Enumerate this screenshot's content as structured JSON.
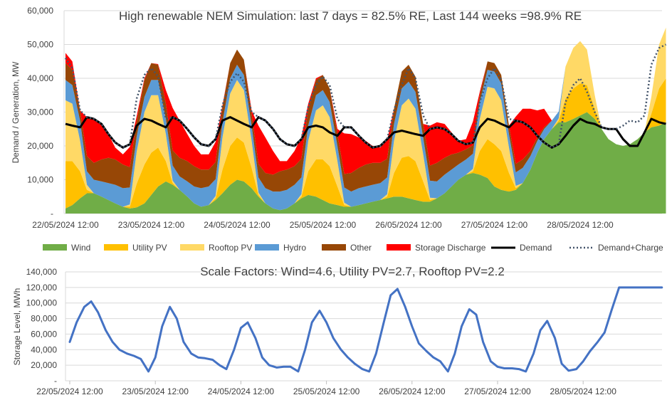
{
  "chart_data": [
    {
      "type": "area",
      "title": "High renewable NEM Simulation: last 7 days = 82.5% RE, Last 144 weeks =98.9% RE",
      "xlabel": "",
      "ylabel": "Demand / Generation, MW",
      "ylim": [
        0,
        60000
      ],
      "yticks": [
        "-",
        "10,000",
        "20,000",
        "30,000",
        "40,000",
        "50,000",
        "60,000"
      ],
      "xticks": [
        "22/05/2024 12:00",
        "23/05/2024 12:00",
        "24/05/2024 12:00",
        "25/05/2024 12:00",
        "26/05/2024 12:00",
        "27/05/2024 12:00",
        "28/05/2024 12:00"
      ],
      "grid": true,
      "legend_position": "bottom",
      "x_days": [
        0,
        0.08,
        0.17,
        0.25,
        0.33,
        0.42,
        0.5,
        0.58,
        0.67,
        0.75,
        0.83,
        0.92,
        1,
        1.08,
        1.17,
        1.25,
        1.33,
        1.42,
        1.5,
        1.58,
        1.67,
        1.75,
        1.83,
        1.92,
        2,
        2.08,
        2.17,
        2.25,
        2.33,
        2.42,
        2.5,
        2.58,
        2.67,
        2.75,
        2.83,
        2.92,
        3,
        3.08,
        3.17,
        3.25,
        3.33,
        3.42,
        3.5,
        3.58,
        3.67,
        3.75,
        3.83,
        3.92,
        4,
        4.08,
        4.17,
        4.25,
        4.33,
        4.42,
        4.5,
        4.58,
        4.67,
        4.75,
        4.83,
        4.92,
        5,
        5.08,
        5.17,
        5.25,
        5.33,
        5.42,
        5.5,
        5.58,
        5.67,
        5.75,
        5.83,
        5.92,
        6,
        6.08,
        6.17,
        6.25,
        6.33,
        6.42,
        6.5,
        6.58,
        6.67,
        6.75,
        6.83,
        6.92,
        7
      ],
      "series": [
        {
          "name": "Wind",
          "color": "#70AD47",
          "values": [
            1500,
            2500,
            4500,
            6000,
            6000,
            5000,
            4000,
            3000,
            2000,
            1500,
            1800,
            3000,
            5500,
            8000,
            9500,
            8500,
            7000,
            5000,
            3000,
            2000,
            2500,
            4000,
            6000,
            8500,
            10000,
            9500,
            7500,
            5000,
            3000,
            1500,
            1000,
            1500,
            3000,
            4500,
            5500,
            5000,
            4000,
            3000,
            2500,
            2000,
            2000,
            2500,
            3000,
            3500,
            4000,
            4500,
            5000,
            5000,
            4500,
            4000,
            3500,
            3500,
            4500,
            6000,
            8000,
            10000,
            11500,
            12000,
            11500,
            10500,
            8000,
            7000,
            6500,
            7000,
            9000,
            13000,
            18000,
            22000,
            25000,
            27000,
            27000,
            28000,
            29000,
            30000,
            28000,
            25000,
            22000,
            20500,
            20000,
            20500,
            22000,
            24000,
            25500,
            26000,
            27000
          ]
        },
        {
          "name": "Utility PV",
          "color": "#FFC000",
          "values": [
            14000,
            13000,
            8000,
            1000,
            0,
            0,
            0,
            0,
            0,
            500,
            7000,
            11500,
            12500,
            11500,
            6000,
            500,
            0,
            0,
            0,
            0,
            0,
            500,
            7000,
            11500,
            12500,
            11500,
            6000,
            500,
            0,
            0,
            0,
            0,
            0,
            500,
            7000,
            11000,
            12000,
            11000,
            5500,
            500,
            0,
            0,
            0,
            0,
            0,
            500,
            7000,
            11500,
            12500,
            11500,
            6000,
            500,
            0,
            0,
            0,
            0,
            0,
            500,
            7000,
            11500,
            12500,
            11500,
            5500,
            500,
            0,
            0,
            0,
            0,
            0,
            500,
            7000,
            9000,
            9500,
            8000,
            3000,
            0,
            0,
            0,
            0,
            0,
            0,
            0,
            4000,
            11000,
            13000
          ]
        },
        {
          "name": "Rooftop PV",
          "color": "#FFD966",
          "values": [
            18000,
            17000,
            9000,
            1500,
            0,
            0,
            0,
            0,
            0,
            700,
            9500,
            15500,
            17000,
            15500,
            8000,
            700,
            0,
            0,
            0,
            0,
            0,
            700,
            9500,
            15500,
            17000,
            15500,
            8000,
            700,
            0,
            0,
            0,
            0,
            0,
            700,
            9000,
            14500,
            16000,
            14500,
            7500,
            700,
            0,
            0,
            0,
            0,
            0,
            700,
            9500,
            15500,
            17000,
            15500,
            8000,
            700,
            0,
            0,
            0,
            0,
            0,
            700,
            9500,
            15500,
            16500,
            15000,
            7500,
            700,
            0,
            0,
            0,
            0,
            0,
            700,
            9500,
            12000,
            12500,
            10500,
            4000,
            0,
            0,
            0,
            0,
            0,
            0,
            0,
            5000,
            13000,
            15000
          ]
        },
        {
          "name": "Hydro",
          "color": "#5B9BD5",
          "values": [
            6000,
            5500,
            6000,
            4000,
            4000,
            4500,
            5000,
            5500,
            5500,
            5000,
            4500,
            4500,
            4500,
            4500,
            4500,
            4500,
            4000,
            4500,
            5000,
            5500,
            5500,
            5000,
            4500,
            4500,
            4500,
            4500,
            4500,
            4500,
            4500,
            5000,
            5500,
            5500,
            5500,
            5000,
            4500,
            4500,
            4500,
            4500,
            4500,
            4500,
            4500,
            5000,
            5000,
            5000,
            5000,
            5000,
            5000,
            5000,
            5000,
            5000,
            5000,
            5000,
            5000,
            5500,
            5000,
            4500,
            4500,
            4500,
            5000,
            5000,
            5000,
            5000,
            4000,
            4000,
            4500,
            4000,
            3500,
            3000,
            2500,
            2000,
            0,
            0,
            0,
            0,
            0,
            0,
            0,
            0,
            0,
            0,
            0,
            0,
            0,
            0,
            0
          ]
        },
        {
          "name": "Other",
          "color": "#974706",
          "values": [
            5000,
            4500,
            3000,
            4500,
            5000,
            6500,
            7500,
            7500,
            7000,
            6000,
            4500,
            5000,
            5000,
            4500,
            4500,
            4500,
            5500,
            6000,
            6000,
            5500,
            5000,
            5000,
            4500,
            4500,
            4500,
            4500,
            3500,
            4000,
            4500,
            5000,
            6000,
            6000,
            5500,
            5500,
            5000,
            4500,
            4500,
            4000,
            3500,
            4000,
            5500,
            6000,
            6500,
            6500,
            6000,
            5500,
            4500,
            5000,
            5000,
            4500,
            4000,
            4500,
            5500,
            5000,
            4500,
            3500,
            3000,
            2500,
            2000,
            2500,
            2500,
            2500,
            2500,
            2500,
            2500,
            1500,
            1000,
            500,
            0,
            0,
            0,
            0,
            0,
            0,
            0,
            0,
            0,
            0,
            0,
            0,
            0,
            0,
            0,
            0,
            0
          ]
        },
        {
          "name": "Storage Discharge",
          "color": "#FF0000",
          "values": [
            3000,
            2500,
            0,
            11500,
            13000,
            10500,
            7000,
            3500,
            3000,
            6000,
            1500,
            500,
            0,
            200,
            4000,
            12500,
            11000,
            8000,
            6000,
            4500,
            4500,
            6000,
            500,
            0,
            0,
            0,
            1000,
            11300,
            10500,
            7000,
            3000,
            2500,
            4500,
            6500,
            1500,
            500,
            0,
            0,
            1500,
            12000,
            11500,
            9000,
            7000,
            5000,
            4500,
            5500,
            0,
            0,
            0,
            0,
            0,
            11800,
            12000,
            10000,
            6500,
            3500,
            3000,
            7000,
            1000,
            0,
            0,
            0,
            0,
            14000,
            15000,
            12500,
            8000,
            5500,
            0,
            0,
            0,
            0,
            0,
            0,
            0,
            0,
            0,
            0,
            0,
            0,
            0,
            0,
            0,
            0,
            0
          ]
        },
        {
          "name": "Demand",
          "color": "#000000",
          "values": [
            26500,
            26000,
            25500,
            28500,
            28000,
            26500,
            23500,
            21000,
            19500,
            20500,
            26000,
            28000,
            27500,
            26500,
            25500,
            28500,
            27500,
            25000,
            22500,
            20500,
            20000,
            22000,
            27500,
            28500,
            27500,
            26500,
            25500,
            28500,
            27500,
            25000,
            22000,
            20500,
            20000,
            22000,
            25500,
            26000,
            25500,
            24000,
            23000,
            25500,
            25500,
            23000,
            21000,
            19500,
            20000,
            22000,
            24000,
            24500,
            24000,
            23500,
            23000,
            25000,
            25500,
            25000,
            23500,
            21500,
            20500,
            21000,
            25500,
            28000,
            27500,
            26500,
            25500,
            27500,
            27000,
            25500,
            23000,
            21000,
            19500,
            20500,
            23000,
            26000,
            28000,
            27000,
            26500,
            25500,
            25000,
            25000,
            22000,
            20000,
            20000,
            24000,
            28000,
            27000,
            26500
          ]
        },
        {
          "name": "Demand+Charge",
          "color": "#44546A",
          "values": [
            46000,
            43000,
            30500,
            28500,
            28000,
            26500,
            23500,
            21000,
            19500,
            20500,
            34000,
            41000,
            43000,
            40500,
            28000,
            28500,
            27500,
            25000,
            22500,
            20500,
            20000,
            22000,
            32000,
            39000,
            41500,
            39000,
            30000,
            28500,
            27500,
            25000,
            22000,
            20500,
            20000,
            22000,
            31500,
            38000,
            40500,
            38000,
            28000,
            25500,
            25500,
            23000,
            21000,
            19500,
            20000,
            22000,
            30500,
            38000,
            43000,
            40000,
            29000,
            25000,
            25500,
            25000,
            23500,
            21500,
            20500,
            21000,
            33000,
            40000,
            43000,
            39500,
            28000,
            27500,
            27000,
            25500,
            23000,
            21000,
            19500,
            20500,
            33000,
            38000,
            40000,
            36000,
            30000,
            25500,
            25000,
            25000,
            26000,
            27500,
            27000,
            29000,
            44000,
            49000,
            50000
          ]
        }
      ]
    },
    {
      "type": "line",
      "title": "Scale Factors: Wind=4.6, Utility PV=2.7, Rooftop PV=2.2",
      "xlabel": "",
      "ylabel": "Storage Level, MWh",
      "ylim": [
        0,
        140000
      ],
      "yticks": [
        "-",
        "20,000",
        "40,000",
        "60,000",
        "80,000",
        "100,000",
        "120,000",
        "140,000"
      ],
      "xticks": [
        "22/05/2024 12:00",
        "23/05/2024 12:00",
        "24/05/2024 12:00",
        "25/05/2024 12:00",
        "26/05/2024 12:00",
        "27/05/2024 12:00",
        "28/05/2024 12:00"
      ],
      "grid": true,
      "x_days": [
        0,
        0.08,
        0.17,
        0.25,
        0.33,
        0.42,
        0.5,
        0.58,
        0.67,
        0.75,
        0.83,
        0.92,
        1,
        1.08,
        1.17,
        1.25,
        1.33,
        1.42,
        1.5,
        1.58,
        1.67,
        1.75,
        1.83,
        1.92,
        2,
        2.08,
        2.17,
        2.25,
        2.33,
        2.42,
        2.5,
        2.58,
        2.67,
        2.75,
        2.83,
        2.92,
        3,
        3.08,
        3.17,
        3.25,
        3.33,
        3.42,
        3.5,
        3.58,
        3.67,
        3.75,
        3.83,
        3.92,
        4,
        4.08,
        4.17,
        4.25,
        4.33,
        4.42,
        4.5,
        4.58,
        4.67,
        4.75,
        4.83,
        4.92,
        5,
        5.08,
        5.17,
        5.25,
        5.33,
        5.42,
        5.5,
        5.58,
        5.67,
        5.75,
        5.83,
        5.92,
        6,
        6.08,
        6.17,
        6.25,
        6.33,
        6.42,
        6.5,
        6.58,
        6.67,
        6.75,
        6.83,
        6.92,
        7
      ],
      "series": [
        {
          "name": "Storage Level",
          "color": "#4472C4",
          "values": [
            50000,
            75000,
            95000,
            102000,
            88000,
            65000,
            50000,
            40000,
            35000,
            32000,
            28000,
            12000,
            30000,
            70000,
            95000,
            80000,
            50000,
            35000,
            30000,
            29000,
            27000,
            20000,
            15000,
            40000,
            68000,
            75000,
            55000,
            30000,
            20000,
            17000,
            18000,
            18000,
            12000,
            40000,
            75000,
            90000,
            75000,
            55000,
            40000,
            30000,
            22000,
            15000,
            12000,
            35000,
            75000,
            110000,
            118000,
            95000,
            70000,
            48000,
            38000,
            30000,
            25000,
            12000,
            35000,
            70000,
            92000,
            85000,
            50000,
            25000,
            18000,
            16000,
            16000,
            15000,
            12000,
            35000,
            65000,
            77000,
            55000,
            22000,
            13000,
            15000,
            25000,
            38000,
            50000,
            62000,
            90000,
            120000,
            120000,
            120000,
            120000,
            120000,
            120000,
            120000,
            120000
          ]
        }
      ]
    }
  ]
}
